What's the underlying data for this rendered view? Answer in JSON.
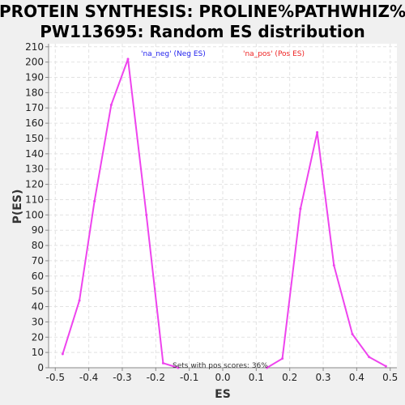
{
  "colors": {
    "page_bg": "#f0f0f0",
    "plot_bg": "#ffffff",
    "grid": "#e2e2e2",
    "series": "#ee44ee",
    "legend_neg": "#2222ee",
    "legend_pos": "#ee2222"
  },
  "chart_data": {
    "type": "line",
    "title": [
      "PROTEIN SYNTHESIS: PROLINE%PATHWHIZ%",
      "PW113695: Random ES distribution"
    ],
    "xlabel": "ES",
    "ylabel": "P(ES)",
    "xlim": [
      -0.52,
      0.52
    ],
    "ylim": [
      0,
      212
    ],
    "grid": true,
    "xticks": [
      -0.5,
      -0.4,
      -0.3,
      -0.2,
      -0.1,
      0.0,
      0.1,
      0.2,
      0.3,
      0.4,
      0.5
    ],
    "xtick_labels": [
      "-0.5",
      "-0.4",
      "-0.3",
      "-0.2",
      "-0.1",
      "0.0",
      "0.1",
      "0.2",
      "0.3",
      "0.4",
      "0.5"
    ],
    "yticks": [
      0,
      10,
      20,
      30,
      40,
      50,
      60,
      70,
      80,
      90,
      100,
      110,
      120,
      130,
      140,
      150,
      160,
      170,
      180,
      190,
      200,
      210
    ],
    "ytick_labels": [
      "0",
      "10",
      "20",
      "30",
      "40",
      "50",
      "60",
      "70",
      "80",
      "90",
      "100",
      "110",
      "120",
      "130",
      "140",
      "150",
      "160",
      "170",
      "180",
      "190",
      "200",
      "210"
    ],
    "legend": [
      {
        "label": "'na_neg' (Neg ES)",
        "color": "#2222ee"
      },
      {
        "label": "'na_pos' (Pos ES)",
        "color": "#ee2222"
      }
    ],
    "annotation": "Sets with pos scores: 36%",
    "series": [
      {
        "color": "#ee44ee",
        "x": [
          -0.478,
          -0.428,
          -0.383,
          -0.333,
          -0.283,
          -0.228,
          -0.178,
          -0.133
        ],
        "y": [
          9,
          44,
          109,
          172,
          202,
          100,
          3,
          0
        ]
      },
      {
        "color": "#ee44ee",
        "x": [
          0.132,
          0.178,
          0.232,
          0.282,
          0.332,
          0.387,
          0.437,
          0.487
        ],
        "y": [
          0,
          6,
          104,
          154,
          67,
          22,
          7,
          1
        ]
      }
    ]
  }
}
